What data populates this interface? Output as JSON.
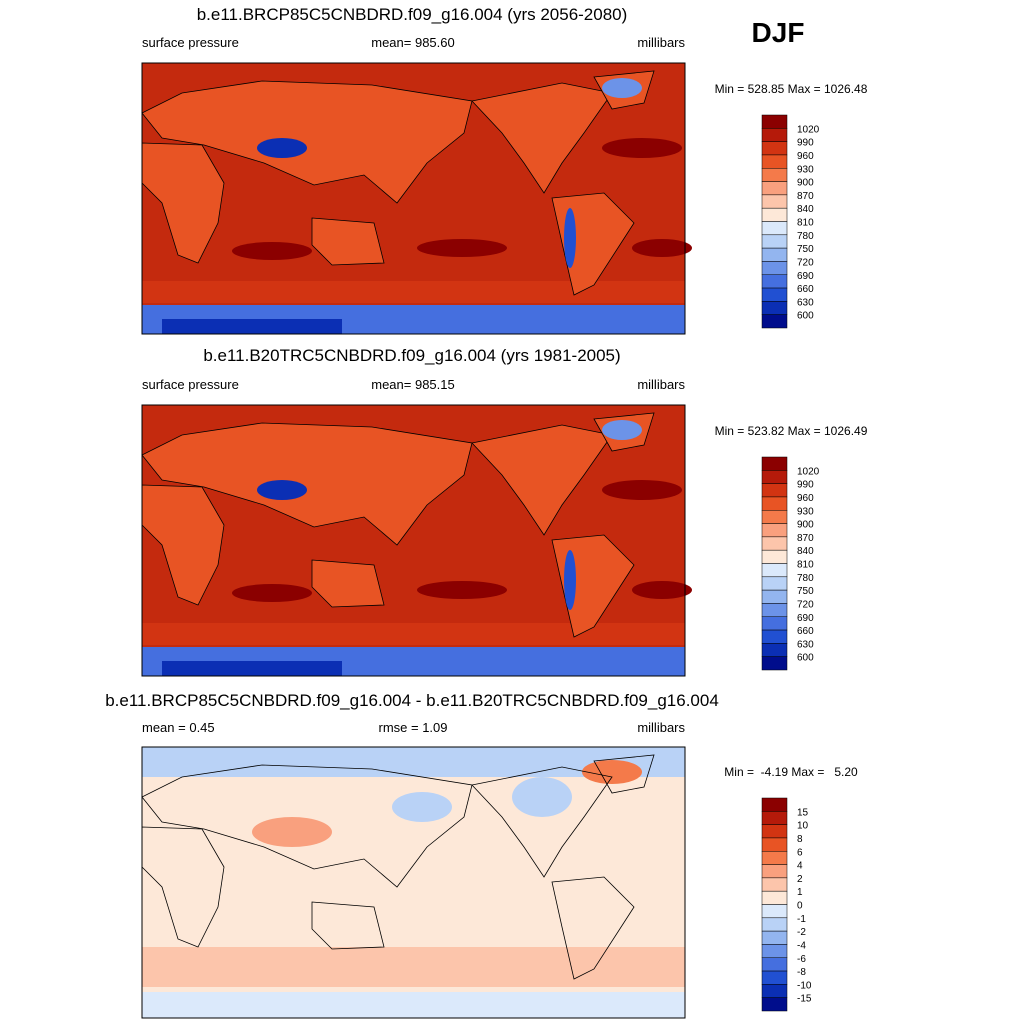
{
  "header": {
    "season": "DJF"
  },
  "panels": [
    {
      "title": "b.e11.BRCP85C5CNBDRD.f09_g16.004 (yrs 2056-2080)",
      "left": "surface pressure",
      "center": "mean= 985.60",
      "right": "millibars",
      "minmax": "Min = 528.85 Max = 1026.48",
      "colorbar": [
        "1020",
        "990",
        "960",
        "930",
        "900",
        "870",
        "840",
        "810",
        "780",
        "750",
        "720",
        "690",
        "660",
        "630",
        "600"
      ]
    },
    {
      "title": "b.e11.B20TRC5CNBDRD.f09_g16.004 (yrs 1981-2005)",
      "left": "surface pressure",
      "center": "mean= 985.15",
      "right": "millibars",
      "minmax": "Min = 523.82 Max = 1026.49",
      "colorbar": [
        "1020",
        "990",
        "960",
        "930",
        "900",
        "870",
        "840",
        "810",
        "780",
        "750",
        "720",
        "690",
        "660",
        "630",
        "600"
      ]
    },
    {
      "title": "b.e11.BRCP85C5CNBDRD.f09_g16.004 - b.e11.B20TRC5CNBDRD.f09_g16.004",
      "left": "mean =   0.45",
      "center": "rmse =   1.09",
      "right": "millibars",
      "minmax": "Min =  -4.19 Max =   5.20",
      "colorbar": [
        "15",
        "10",
        "8",
        "6",
        "4",
        "2",
        "1",
        "0",
        "-1",
        "-2",
        "-4",
        "-6",
        "-8",
        "-10",
        "-15"
      ]
    }
  ]
}
